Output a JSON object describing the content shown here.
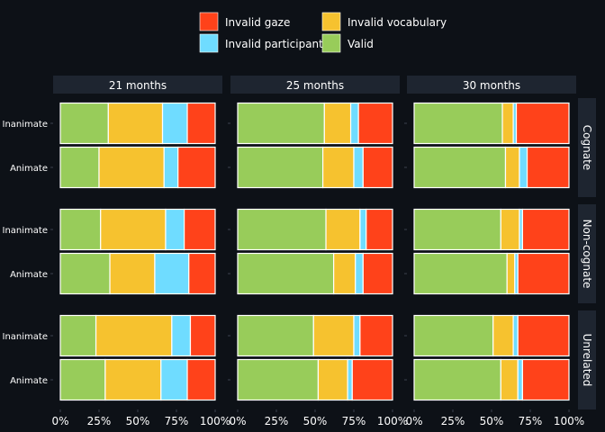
{
  "chart_data": {
    "type": "bar",
    "orientation": "horizontal",
    "stacked": true,
    "percent": true,
    "xlim": [
      0,
      100
    ],
    "x_ticks": [
      "0%",
      "25%",
      "50%",
      "75%",
      "100%"
    ],
    "series": [
      {
        "name": "Valid",
        "color": "#98cc5a"
      },
      {
        "name": "Invalid vocabulary",
        "color": "#f6c22f"
      },
      {
        "name": "Invalid participant",
        "color": "#6fdcff"
      },
      {
        "name": "Invalid gaze",
        "color": "#ff421a"
      }
    ],
    "legend_order": [
      "Invalid gaze",
      "Invalid vocabulary",
      "Invalid participant",
      "Valid"
    ],
    "columns": [
      "21 months",
      "25 months",
      "30 months"
    ],
    "rows": [
      "Cognate",
      "Non-cognate",
      "Unrelated"
    ],
    "categories": [
      "Inanimate",
      "Animate"
    ],
    "panels": [
      {
        "row": "Cognate",
        "col": "21 months",
        "bars": [
          {
            "category": "Inanimate",
            "values": [
              31,
              35,
              16,
              18
            ]
          },
          {
            "category": "Animate",
            "values": [
              25,
              42,
              9,
              24
            ]
          }
        ]
      },
      {
        "row": "Cognate",
        "col": "25 months",
        "bars": [
          {
            "category": "Inanimate",
            "values": [
              56,
              17,
              5,
              22
            ]
          },
          {
            "category": "Animate",
            "values": [
              55,
              20,
              6,
              19
            ]
          }
        ]
      },
      {
        "row": "Cognate",
        "col": "30 months",
        "bars": [
          {
            "category": "Inanimate",
            "values": [
              57,
              7,
              2,
              34
            ]
          },
          {
            "category": "Animate",
            "values": [
              59,
              9,
              5,
              27
            ]
          }
        ]
      },
      {
        "row": "Non-cognate",
        "col": "21 months",
        "bars": [
          {
            "category": "Inanimate",
            "values": [
              26,
              42,
              12,
              20
            ]
          },
          {
            "category": "Animate",
            "values": [
              32,
              29,
              22,
              17
            ]
          }
        ]
      },
      {
        "row": "Non-cognate",
        "col": "25 months",
        "bars": [
          {
            "category": "Inanimate",
            "values": [
              57,
              22,
              4,
              17
            ]
          },
          {
            "category": "Animate",
            "values": [
              62,
              14,
              5,
              19
            ]
          }
        ]
      },
      {
        "row": "Non-cognate",
        "col": "30 months",
        "bars": [
          {
            "category": "Inanimate",
            "values": [
              56,
              12,
              2,
              30
            ]
          },
          {
            "category": "Animate",
            "values": [
              60,
              5,
              2,
              33
            ]
          }
        ]
      },
      {
        "row": "Unrelated",
        "col": "21 months",
        "bars": [
          {
            "category": "Inanimate",
            "values": [
              23,
              49,
              12,
              16
            ]
          },
          {
            "category": "Animate",
            "values": [
              29,
              36,
              17,
              18
            ]
          }
        ]
      },
      {
        "row": "Unrelated",
        "col": "25 months",
        "bars": [
          {
            "category": "Inanimate",
            "values": [
              49,
              26,
              4,
              21
            ]
          },
          {
            "category": "Animate",
            "values": [
              52,
              19,
              3,
              26
            ]
          }
        ]
      },
      {
        "row": "Unrelated",
        "col": "30 months",
        "bars": [
          {
            "category": "Inanimate",
            "values": [
              51,
              13,
              3,
              33
            ]
          },
          {
            "category": "Animate",
            "values": [
              56,
              11,
              3,
              30
            ]
          }
        ]
      }
    ]
  }
}
